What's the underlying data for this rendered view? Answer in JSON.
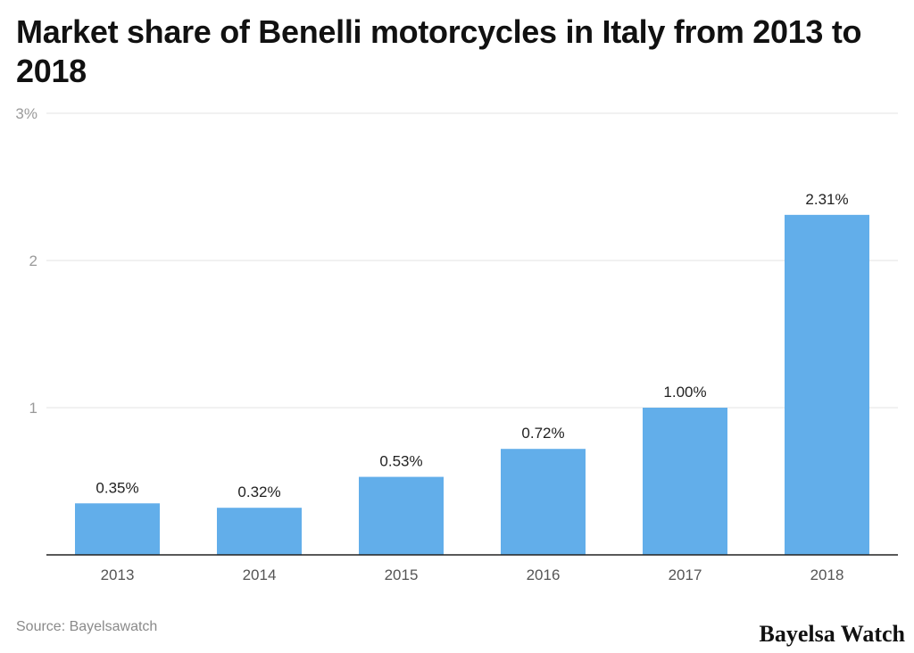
{
  "chart_data": {
    "type": "bar",
    "title": "Market share of Benelli motorcycles in Italy from 2013 to 2018",
    "categories": [
      "2013",
      "2014",
      "2015",
      "2016",
      "2017",
      "2018"
    ],
    "values": [
      0.35,
      0.32,
      0.53,
      0.72,
      1.0,
      2.31
    ],
    "value_labels": [
      "0.35%",
      "0.32%",
      "0.53%",
      "0.72%",
      "1.00%",
      "2.31%"
    ],
    "y_ticks": [
      1,
      2,
      3
    ],
    "y_tick_labels": [
      "1",
      "2",
      "3%"
    ],
    "ylim": [
      0,
      3
    ],
    "xlabel": "",
    "ylabel": "",
    "grid": true,
    "bar_color": "#62aeea"
  },
  "footer": {
    "source": "Source: Bayelsawatch",
    "brand": "Bayelsa Watch"
  }
}
